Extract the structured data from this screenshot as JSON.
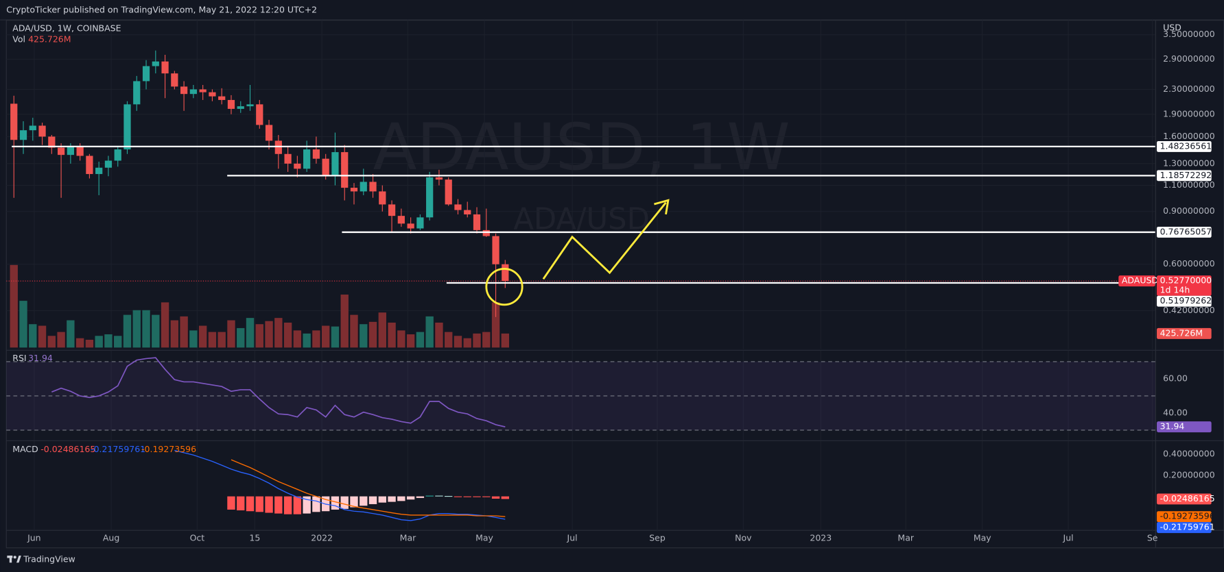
{
  "header": {
    "published": "CryptoTicker published on TradingView.com, May 21, 2022 12:20 UTC+2"
  },
  "footer": {
    "brand": "TradingView"
  },
  "chart_data": [
    {
      "type": "candlestick",
      "title": "ADA/USD, 1W, COINBASE",
      "watermark": "ADAUSD, 1W",
      "watermark_sub": "ADA/USD",
      "y_unit": "USD",
      "log_scale": true,
      "grid": true,
      "ylim": [
        0.3163,
        3.865
      ],
      "yticks": [
        {
          "value": 3.5,
          "label": "3.50000000"
        },
        {
          "value": 2.9,
          "label": "2.90000000"
        },
        {
          "value": 2.3,
          "label": "2.30000000"
        },
        {
          "value": 1.9,
          "label": "1.90000000"
        },
        {
          "value": 1.6,
          "label": "1.60000000"
        },
        {
          "value": 1.3,
          "label": "1.30000000"
        },
        {
          "value": 1.1,
          "label": "1.10000000"
        },
        {
          "value": 0.9,
          "label": "0.90000000"
        },
        {
          "value": 0.6,
          "label": "0.60000000"
        },
        {
          "value": 0.42,
          "label": "0.42000000"
        }
      ],
      "xlim": [
        -0.8,
        120.8
      ],
      "xticks": [
        {
          "value": 2.15,
          "label": "Jun"
        },
        {
          "value": 10.3,
          "label": "Aug"
        },
        {
          "value": 19.4,
          "label": "Oct"
        },
        {
          "value": 25.5,
          "label": "15"
        },
        {
          "value": 32.6,
          "label": "2022"
        },
        {
          "value": 41.7,
          "label": "Mar"
        },
        {
          "value": 49.8,
          "label": "May"
        },
        {
          "value": 59.1,
          "label": "Jul"
        },
        {
          "value": 68.1,
          "label": "Sep"
        },
        {
          "value": 77.2,
          "label": "Nov"
        },
        {
          "value": 85.4,
          "label": "2023"
        },
        {
          "value": 94.4,
          "label": "Mar"
        },
        {
          "value": 102.5,
          "label": "May"
        },
        {
          "value": 111.6,
          "label": "Jul"
        },
        {
          "value": 120.5,
          "label": "Se"
        }
      ],
      "up_color": "#26a69a",
      "down_color": "#ef5350",
      "candles": {
        "open": [
          2.06,
          1.56,
          1.68,
          1.74,
          1.6,
          1.47,
          1.39,
          1.49,
          1.38,
          1.2,
          1.26,
          1.33,
          1.45,
          2.05,
          2.45,
          2.75,
          2.85,
          2.6,
          2.35,
          2.22,
          2.3,
          2.25,
          2.18,
          2.12,
          1.98,
          2.02,
          2.05,
          1.75,
          1.55,
          1.4,
          1.3,
          1.25,
          1.45,
          1.35,
          1.18,
          1.42,
          1.08,
          1.05,
          1.13,
          1.05,
          0.95,
          0.87,
          0.82,
          0.79,
          0.86,
          1.17,
          1.15,
          0.95,
          0.91,
          0.88,
          0.78,
          0.745,
          0.6
        ],
        "high": [
          2.19,
          1.8,
          1.85,
          1.78,
          1.62,
          1.52,
          1.52,
          1.52,
          1.4,
          1.32,
          1.38,
          1.48,
          2.1,
          2.55,
          2.88,
          3.1,
          3.0,
          2.65,
          2.45,
          2.38,
          2.38,
          2.3,
          2.32,
          2.2,
          2.1,
          2.38,
          2.12,
          1.82,
          1.62,
          1.48,
          1.38,
          1.55,
          1.6,
          1.4,
          1.65,
          1.5,
          1.12,
          1.25,
          1.2,
          1.1,
          0.98,
          0.92,
          0.86,
          0.88,
          1.22,
          1.24,
          1.17,
          0.99,
          0.97,
          0.93,
          0.92,
          0.76,
          0.62
        ],
        "low": [
          1.0,
          1.4,
          1.55,
          1.5,
          1.4,
          1.0,
          1.3,
          1.33,
          1.16,
          1.02,
          1.18,
          1.27,
          1.4,
          1.95,
          2.3,
          2.6,
          2.15,
          2.3,
          1.95,
          2.15,
          2.12,
          2.1,
          2.05,
          1.9,
          1.92,
          1.95,
          1.7,
          1.45,
          1.25,
          1.22,
          1.17,
          1.22,
          1.3,
          1.15,
          1.1,
          0.98,
          0.95,
          1.02,
          1.0,
          0.9,
          0.77,
          0.8,
          0.76,
          0.78,
          0.84,
          1.1,
          0.94,
          0.88,
          0.86,
          0.76,
          0.74,
          0.4,
          0.5
        ],
        "close": [
          1.56,
          1.68,
          1.74,
          1.6,
          1.47,
          1.39,
          1.49,
          1.38,
          1.2,
          1.26,
          1.33,
          1.45,
          2.05,
          2.45,
          2.75,
          2.85,
          2.6,
          2.35,
          2.22,
          2.3,
          2.25,
          2.18,
          2.12,
          1.98,
          2.02,
          2.05,
          1.75,
          1.55,
          1.4,
          1.3,
          1.25,
          1.45,
          1.35,
          1.18,
          1.42,
          1.08,
          1.05,
          1.13,
          1.05,
          0.95,
          0.87,
          0.82,
          0.79,
          0.86,
          1.17,
          1.15,
          0.95,
          0.91,
          0.88,
          0.78,
          0.745,
          0.6,
          0.5277
        ]
      },
      "volume": {
        "name": "Vol",
        "vlim": [
          0,
          9886
        ],
        "up_color": "#1f6b61",
        "down_color": "#7f2e31",
        "last_label": "425.726M",
        "values": [
          2507,
          1419,
          710,
          662,
          355,
          473,
          828,
          284,
          237,
          355,
          402,
          355,
          993,
          1135,
          1135,
          993,
          1372,
          828,
          946,
          520,
          662,
          473,
          473,
          828,
          591,
          899,
          710,
          804,
          899,
          757,
          520,
          426,
          520,
          662,
          639,
          1608,
          993,
          710,
          780,
          1064,
          757,
          520,
          402,
          473,
          946,
          757,
          473,
          355,
          284,
          426,
          473,
          1372,
          425.726
        ]
      },
      "levels": [
        1.48236561,
        1.18572292,
        0.76765057,
        0.51979262
      ],
      "last_price": {
        "value": 0.5277,
        "label": "0.52770000",
        "name": "ADAUSD",
        "countdown": "1d 14h",
        "color": "#f23645"
      }
    },
    {
      "type": "line",
      "title": "RSI",
      "color": "#7e57c2",
      "band_fill": "#7e57c2",
      "ylim": [
        25,
        75.5
      ],
      "yticks": [
        {
          "value": 60,
          "label": "60.00"
        },
        {
          "value": 40,
          "label": "40.00"
        }
      ],
      "bands": [
        70,
        50,
        30
      ],
      "values": [
        null,
        null,
        null,
        null,
        52.3,
        54.5,
        52.7,
        50.0,
        49.1,
        50,
        52.3,
        55.9,
        67.3,
        70.9,
        71.8,
        72.3,
        65.5,
        59.5,
        58.2,
        58.2,
        57.3,
        56.4,
        55.5,
        52.7,
        53.6,
        53.6,
        48.2,
        43.2,
        39.5,
        39.1,
        37.7,
        43.2,
        41.8,
        37.7,
        44.5,
        39.1,
        37.7,
        40.5,
        39.1,
        37.3,
        36.4,
        35.0,
        34.1,
        37.7,
        46.8,
        46.8,
        42.7,
        40.5,
        39.5,
        36.8,
        35.5,
        33.2,
        31.94
      ]
    },
    {
      "type": "macd",
      "title": "MACD",
      "ylim": [
        -0.319,
        0.511
      ],
      "yticks": [
        {
          "value": 0.4,
          "label": "0.40000000"
        },
        {
          "value": 0.2,
          "label": "0.20000000"
        }
      ],
      "histogram": {
        "colors": {
          "neg_falling": "#ff5252",
          "neg_rising": "#ffcdd2",
          "pos_rising": "#26a69a",
          "pos_falling": "#b2dfdb"
        },
        "values": [
          null,
          null,
          null,
          null,
          null,
          null,
          null,
          null,
          null,
          null,
          null,
          null,
          null,
          null,
          null,
          null,
          null,
          null,
          null,
          null,
          null,
          null,
          null,
          -0.126,
          -0.133,
          -0.141,
          -0.148,
          -0.156,
          -0.163,
          -0.17,
          -0.17,
          -0.163,
          -0.148,
          -0.141,
          -0.126,
          -0.119,
          -0.104,
          -0.089,
          -0.074,
          -0.059,
          -0.052,
          -0.044,
          -0.03,
          -0.015,
          0.007,
          0.007,
          0.004,
          -0.002,
          -0.002,
          -0.007,
          -0.007,
          -0.022,
          -0.02486165
        ]
      },
      "macd": {
        "color": "#2962ff",
        "values": [
          null,
          null,
          null,
          null,
          null,
          null,
          null,
          null,
          null,
          null,
          null,
          null,
          null,
          null,
          null,
          null,
          null,
          0.437,
          0.415,
          0.393,
          0.363,
          0.333,
          0.296,
          0.259,
          0.23,
          0.207,
          0.17,
          0.126,
          0.074,
          0.03,
          -0.007,
          -0.03,
          -0.044,
          -0.074,
          -0.089,
          -0.126,
          -0.141,
          -0.148,
          -0.163,
          -0.178,
          -0.2,
          -0.222,
          -0.23,
          -0.215,
          -0.178,
          -0.163,
          -0.163,
          -0.17,
          -0.17,
          -0.178,
          -0.185,
          -0.2,
          -0.21759761
        ]
      },
      "signal": {
        "color": "#ff6d00",
        "values": [
          null,
          null,
          null,
          null,
          null,
          null,
          null,
          null,
          null,
          null,
          null,
          null,
          null,
          null,
          null,
          null,
          null,
          null,
          null,
          null,
          null,
          null,
          null,
          0.348,
          0.311,
          0.274,
          0.23,
          0.185,
          0.141,
          0.104,
          0.067,
          0.03,
          0,
          -0.03,
          -0.052,
          -0.074,
          -0.096,
          -0.111,
          -0.126,
          -0.141,
          -0.156,
          -0.17,
          -0.178,
          -0.178,
          -0.178,
          -0.178,
          -0.178,
          -0.178,
          -0.178,
          -0.185,
          -0.185,
          -0.185,
          -0.19273596
        ]
      }
    }
  ]
}
